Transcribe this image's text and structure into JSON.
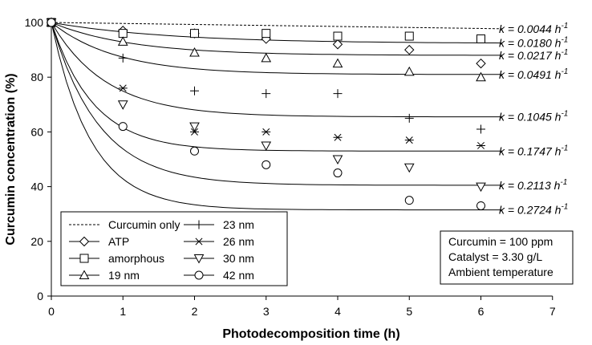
{
  "chart_data": {
    "type": "scatter",
    "xlabel": "Photodecomposition time (h)",
    "ylabel": "Curcumin concentration (%)",
    "xlim": [
      0,
      7
    ],
    "ylim": [
      0,
      100
    ],
    "xticks": [
      "0",
      "1",
      "2",
      "3",
      "4",
      "5",
      "6",
      "7"
    ],
    "yticks": [
      "0",
      "20",
      "40",
      "60",
      "80",
      "100"
    ],
    "grid": false,
    "series": [
      {
        "name": "Curcumin only",
        "marker": "none",
        "line": "dashed",
        "k_label": "k = 0.0044 h",
        "k_value": 0.0044,
        "x": [
          0,
          6.3
        ],
        "y": [
          100,
          97.7
        ],
        "fit_end_y": 97.7
      },
      {
        "name": "ATP",
        "marker": "diamond",
        "k_label": "k = 0.0180 h",
        "k_value": 0.018,
        "x": [
          0,
          1,
          2,
          3,
          4,
          5,
          6
        ],
        "y": [
          100,
          97,
          96,
          94,
          92,
          90,
          85
        ],
        "fit_end_y": 92.5
      },
      {
        "name": "amorphous",
        "marker": "square",
        "k_label": "k = 0.0217 h",
        "k_value": 0.0217,
        "x": [
          0,
          1,
          2,
          3,
          4,
          5,
          6
        ],
        "y": [
          100,
          96,
          96,
          96,
          95,
          95,
          94
        ],
        "fit_end_y": 88
      },
      {
        "name": "19 nm",
        "marker": "triangle-up",
        "k_label": "k = 0.0491 h",
        "k_value": 0.0491,
        "x": [
          0,
          1,
          2,
          3,
          4,
          5,
          6
        ],
        "y": [
          100,
          93,
          89,
          87,
          85,
          82,
          80
        ],
        "fit_end_y": 81
      },
      {
        "name": "23 nm",
        "marker": "plus",
        "k_label": "k = 0.1045 h",
        "k_value": 0.1045,
        "x": [
          0,
          1,
          2,
          3,
          4,
          5,
          6
        ],
        "y": [
          100,
          87,
          75,
          74,
          74,
          65,
          61
        ],
        "fit_end_y": 65.5
      },
      {
        "name": "26 nm",
        "marker": "asterisk",
        "k_label": "k = 0.1747 h",
        "k_value": 0.1747,
        "x": [
          0,
          1,
          2,
          3,
          4,
          5,
          6
        ],
        "y": [
          100,
          76,
          60,
          60,
          58,
          57,
          55
        ],
        "fit_end_y": 53
      },
      {
        "name": "30 nm",
        "marker": "triangle-down",
        "k_label": "k = 0.2113 h",
        "k_value": 0.2113,
        "x": [
          0,
          1,
          2,
          3,
          4,
          5,
          6
        ],
        "y": [
          100,
          70,
          62,
          55,
          50,
          47,
          40
        ],
        "fit_end_y": 40.5
      },
      {
        "name": "42 nm",
        "marker": "circle",
        "k_label": "k = 0.2724 h",
        "k_value": 0.2724,
        "x": [
          0,
          1,
          2,
          3,
          4,
          5,
          6
        ],
        "y": [
          100,
          62,
          53,
          48,
          45,
          35,
          33
        ],
        "fit_end_y": 31.5
      }
    ],
    "k_superscript": "-1",
    "legend_placement": "bottom-left",
    "annotation": [
      "Curcumin = 100 ppm",
      "Catalyst = 3.30 g/L",
      "Ambient temperature"
    ]
  }
}
